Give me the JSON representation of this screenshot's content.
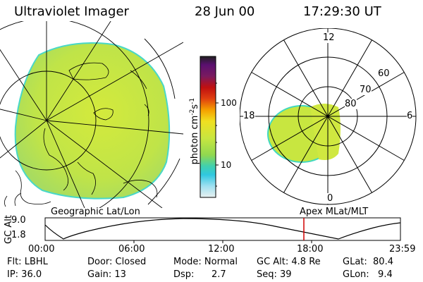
{
  "header": {
    "instrument": "Ultraviolet Imager",
    "date": "28 Jun 00",
    "time": "17:29:30 UT"
  },
  "geo_panel": {
    "label": "Geographic Lat/Lon"
  },
  "apex_panel": {
    "label": "Apex MLat/MLT",
    "mlt_labels": [
      "12",
      "18",
      "6",
      "0"
    ],
    "lat_labels": [
      "60",
      "70",
      "80"
    ]
  },
  "colorbar": {
    "unit_label": "photon cm",
    "unit_sup1": "-2",
    "unit_mid": "s",
    "unit_sup2": "-1",
    "tick_labels": [
      "100",
      "10"
    ]
  },
  "altitude_plot": {
    "axis_title": "GC Alt",
    "y_ticks": [
      "9.0",
      "1.8"
    ],
    "time_ticks": [
      "00:00",
      "06:00",
      "12:00",
      "18:00",
      "23:59"
    ]
  },
  "status": {
    "flt": "Flt: LBHL",
    "ip": "IP: 36.0",
    "door": "Door: Closed",
    "gain": "Gain: 13",
    "mode": "Mode: Normal",
    "dsp_label": "Dsp:",
    "dsp_value": "2.7",
    "gc_alt": "GC Alt: 4.8 Re",
    "seq": "Seq: 39",
    "glat": "GLat:  80.4",
    "glon": "GLon:   9.4"
  },
  "colors": {
    "aurora": "#c8e640",
    "aurora_edge": "#40d8c0",
    "current_time_marker": "#d00000"
  }
}
